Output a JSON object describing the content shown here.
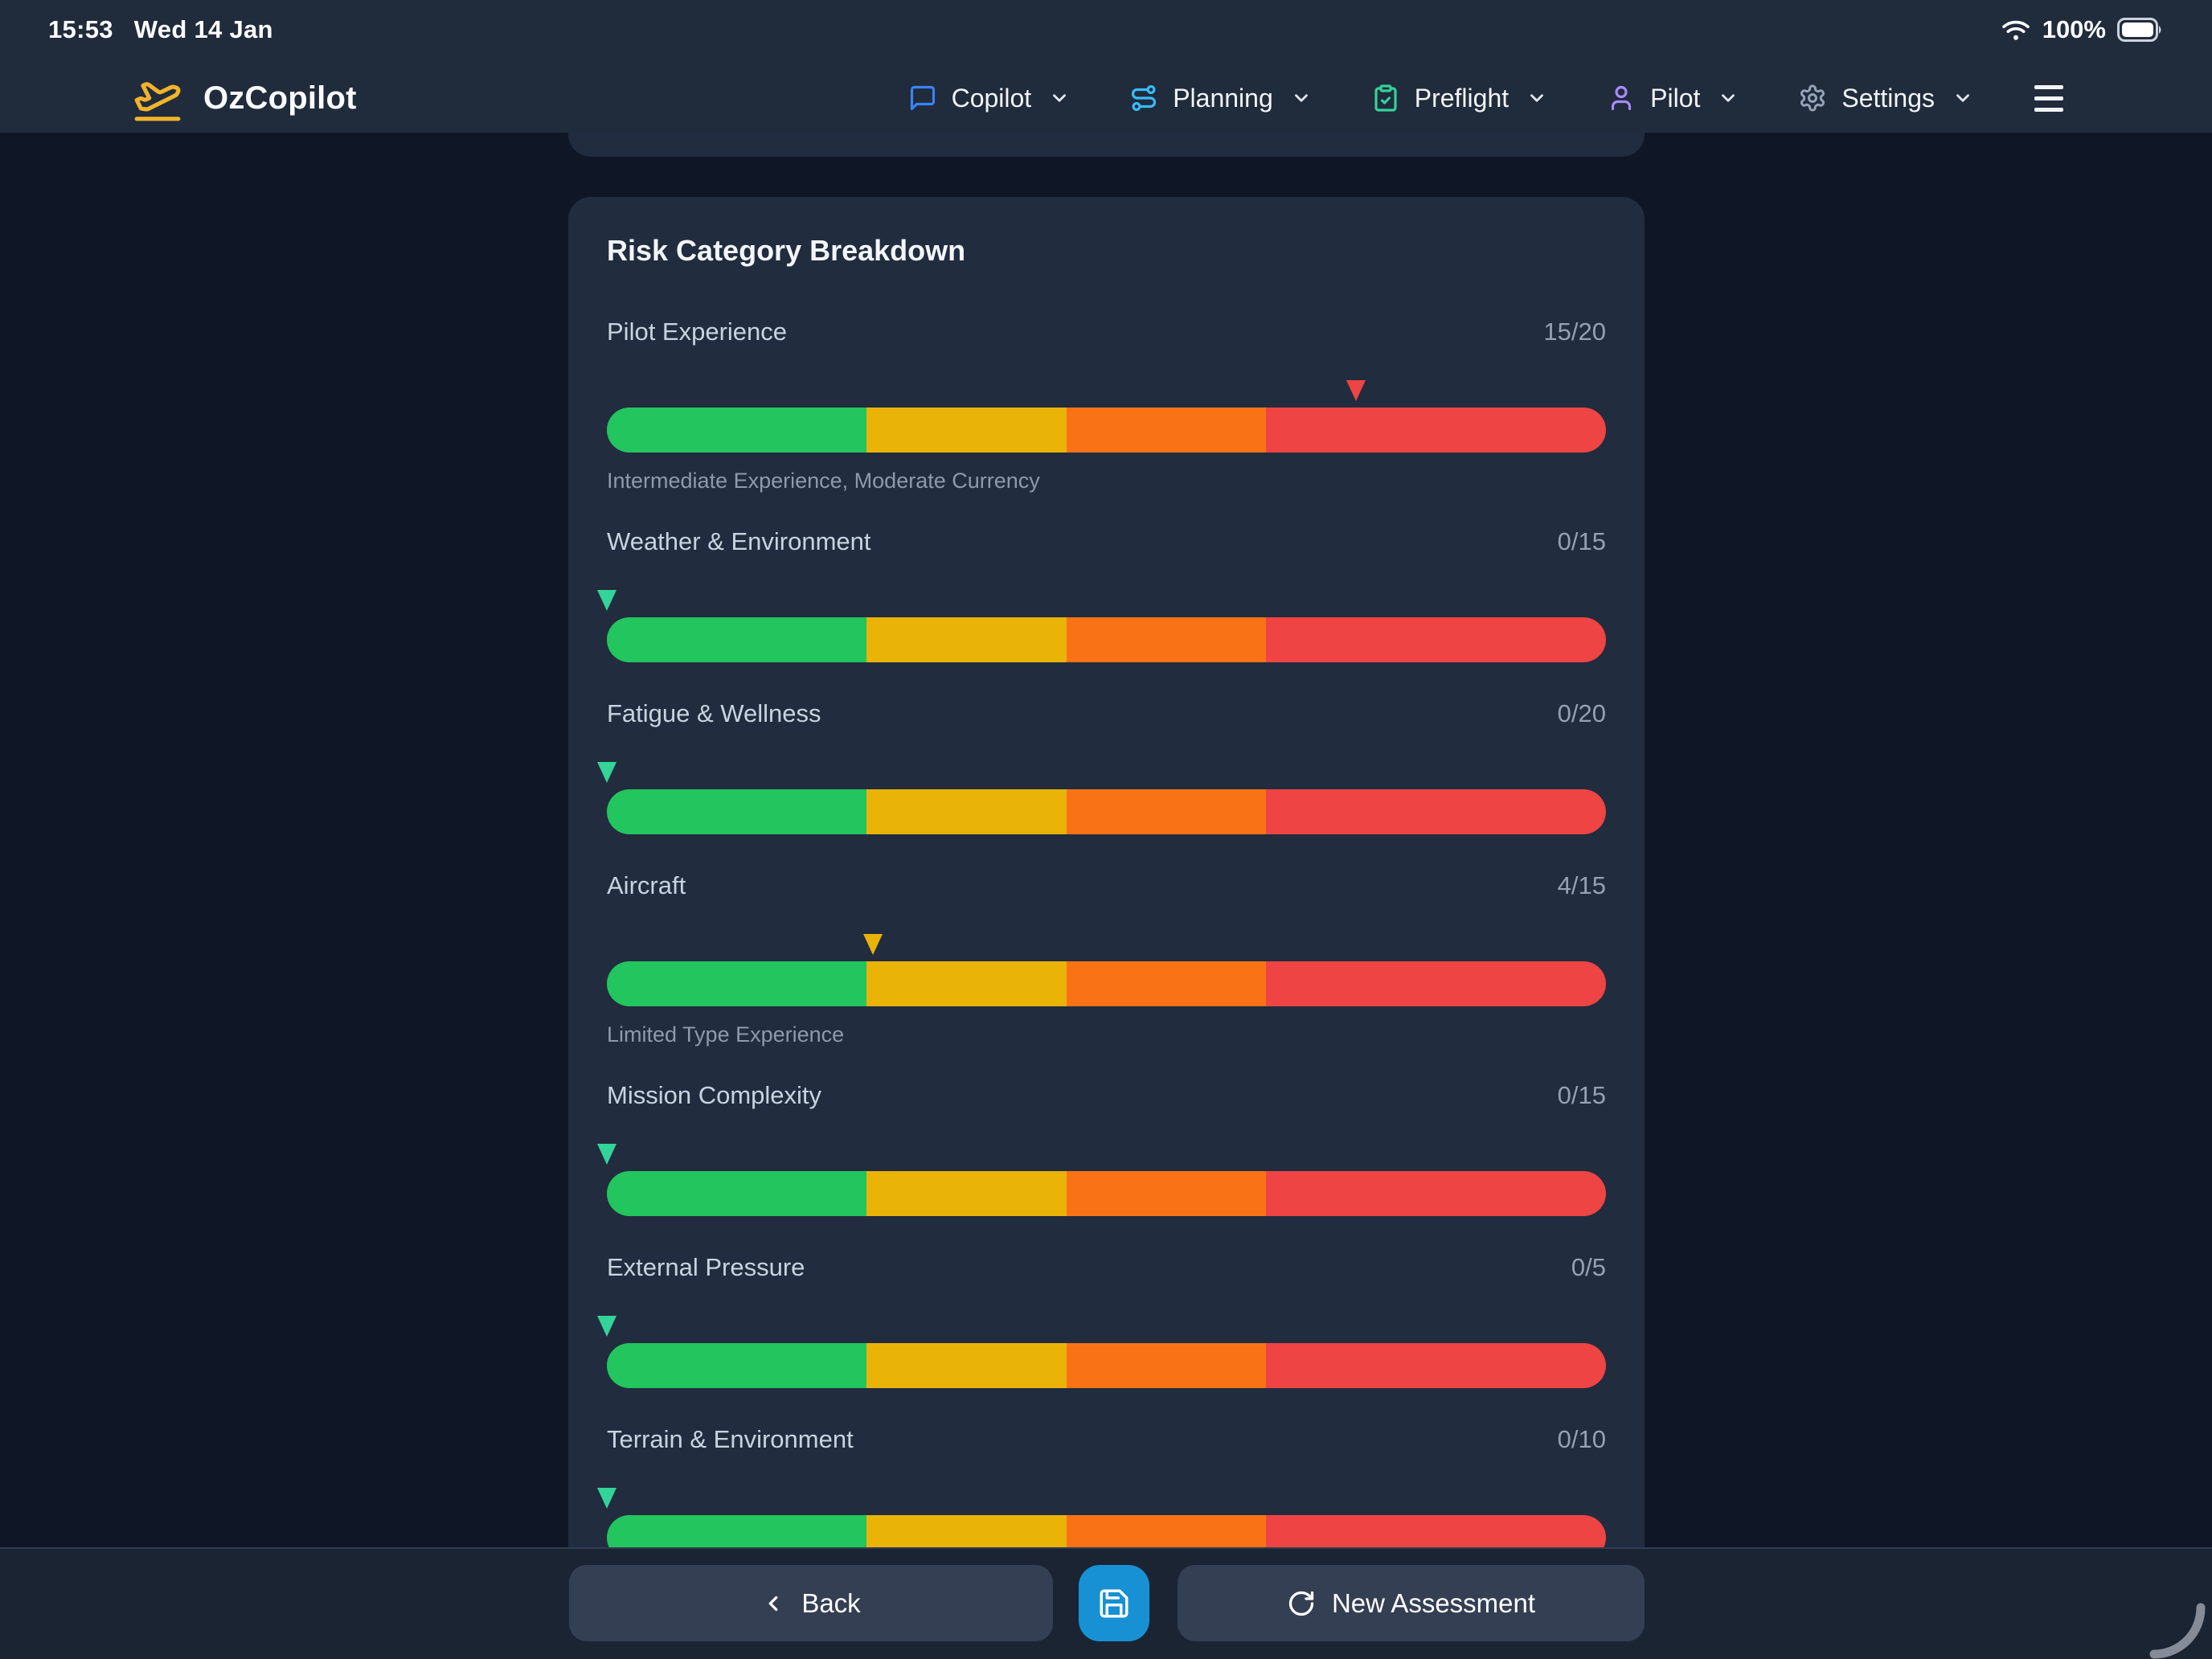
{
  "status_bar": {
    "time": "15:53",
    "date": "Wed 14 Jan",
    "battery_percent": "100%"
  },
  "nav": {
    "brand": "OzCopilot",
    "items": [
      {
        "label": "Copilot",
        "icon": "chat-bubble-icon",
        "color": "#3b82f6"
      },
      {
        "label": "Planning",
        "icon": "route-icon",
        "color": "#38bdf8"
      },
      {
        "label": "Preflight",
        "icon": "clipboard-check-icon",
        "color": "#34d399"
      },
      {
        "label": "Pilot",
        "icon": "user-icon",
        "color": "#a78bfa"
      },
      {
        "label": "Settings",
        "icon": "gear-icon",
        "color": "#94a3b8"
      }
    ]
  },
  "risk_card": {
    "title": "Risk Category Breakdown",
    "gauge_segments": [
      {
        "color": "#22c55e",
        "width_percent": 26
      },
      {
        "color": "#eab308",
        "width_percent": 20
      },
      {
        "color": "#f97316",
        "width_percent": 20
      },
      {
        "color": "#ef4444",
        "width_percent": 34
      }
    ],
    "categories": [
      {
        "label": "Pilot Experience",
        "value": "15/20",
        "score": 15,
        "max": 20,
        "marker_color": "#ef4444",
        "note": "Intermediate Experience, Moderate Currency"
      },
      {
        "label": "Weather & Environment",
        "value": "0/15",
        "score": 0,
        "max": 15,
        "marker_color": "#34d399",
        "note": ""
      },
      {
        "label": "Fatigue & Wellness",
        "value": "0/20",
        "score": 0,
        "max": 20,
        "marker_color": "#34d399",
        "note": ""
      },
      {
        "label": "Aircraft",
        "value": "4/15",
        "score": 4,
        "max": 15,
        "marker_color": "#eab308",
        "note": "Limited Type Experience"
      },
      {
        "label": "Mission Complexity",
        "value": "0/15",
        "score": 0,
        "max": 15,
        "marker_color": "#34d399",
        "note": ""
      },
      {
        "label": "External Pressure",
        "value": "0/5",
        "score": 0,
        "max": 5,
        "marker_color": "#34d399",
        "note": ""
      },
      {
        "label": "Terrain & Environment",
        "value": "0/10",
        "score": 0,
        "max": 10,
        "marker_color": "#34d399",
        "note": ""
      }
    ]
  },
  "footer": {
    "back_label": "Back",
    "save_icon": "save-floppy-icon",
    "new_assessment_label": "New Assessment",
    "accent_blue": "#1791d3"
  }
}
